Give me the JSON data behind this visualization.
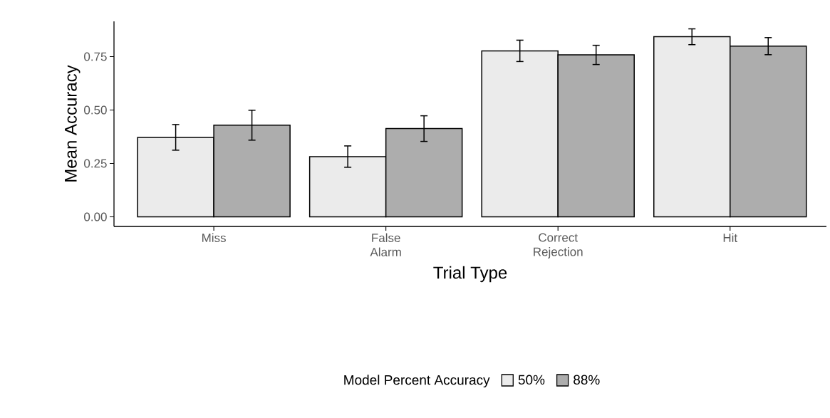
{
  "chart_data": {
    "type": "bar",
    "xlabel": "Trial Type",
    "ylabel": "Mean Accuracy",
    "legend_title": "Model Percent Accuracy",
    "categories": [
      "Miss",
      "False Alarm",
      "Correct Rejection",
      "Hit"
    ],
    "series": [
      {
        "name": "50%",
        "color": "#ebebeb",
        "values": [
          0.372,
          0.282,
          0.777,
          0.843
        ],
        "errors": [
          0.06,
          0.05,
          0.05,
          0.037
        ]
      },
      {
        "name": "88%",
        "color": "#adadad",
        "values": [
          0.429,
          0.413,
          0.758,
          0.799
        ],
        "errors": [
          0.07,
          0.06,
          0.045,
          0.04
        ]
      }
    ],
    "ylim": [
      -0.045,
      0.915
    ],
    "yticks": [
      {
        "value": 0,
        "label": "0.00"
      },
      {
        "value": 0.25,
        "label": "0.25"
      },
      {
        "value": 0.5,
        "label": "0.50"
      },
      {
        "value": 0.75,
        "label": "0.75"
      }
    ],
    "legend": "bottom",
    "grid": false
  }
}
